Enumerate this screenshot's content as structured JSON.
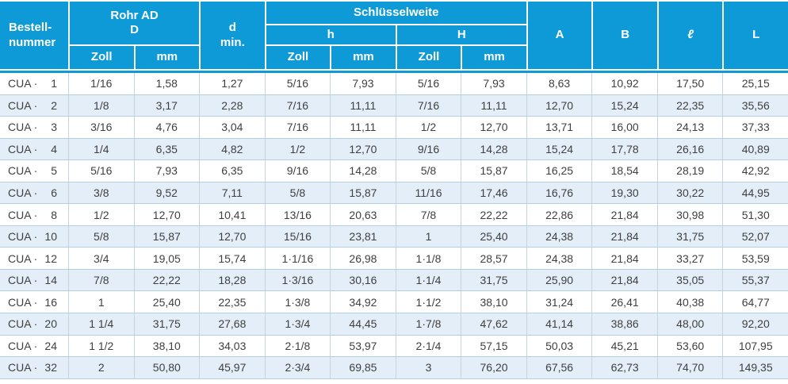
{
  "header": {
    "bestell_line1": "Bestell-",
    "bestell_line2": "nummer",
    "rohr_line1": "Rohr AD",
    "rohr_line2": "D",
    "dmin_line1": "d",
    "dmin_line2": "min.",
    "schluesselweite": "Schlüsselweite",
    "h_lower": "h",
    "h_upper": "H",
    "zoll": "Zoll",
    "mm": "mm",
    "col_a": "A",
    "col_b": "B",
    "col_l_script": "ℓ",
    "col_l": "L"
  },
  "order_prefix": "CUA ·",
  "rows": [
    {
      "nr": "1",
      "values": [
        "1/16",
        "1,58",
        "1,27",
        "5/16",
        "7,93",
        "5/16",
        "7,93",
        "8,63",
        "10,92",
        "17,50",
        "25,15"
      ]
    },
    {
      "nr": "2",
      "values": [
        "1/8",
        "3,17",
        "2,28",
        "7/16",
        "11,11",
        "7/16",
        "11,11",
        "12,70",
        "15,24",
        "22,35",
        "35,56"
      ]
    },
    {
      "nr": "3",
      "values": [
        "3/16",
        "4,76",
        "3,04",
        "7/16",
        "11,11",
        "1/2",
        "12,70",
        "13,71",
        "16,00",
        "24,13",
        "37,33"
      ]
    },
    {
      "nr": "4",
      "values": [
        "1/4",
        "6,35",
        "4,82",
        "1/2",
        "12,70",
        "9/16",
        "14,28",
        "15,24",
        "17,78",
        "26,16",
        "40,89"
      ]
    },
    {
      "nr": "5",
      "values": [
        "5/16",
        "7,93",
        "6,35",
        "9/16",
        "14,28",
        "5/8",
        "15,87",
        "16,25",
        "18,54",
        "28,19",
        "42,92"
      ]
    },
    {
      "nr": "6",
      "values": [
        "3/8",
        "9,52",
        "7,11",
        "5/8",
        "15,87",
        "11/16",
        "17,46",
        "16,76",
        "19,30",
        "30,22",
        "44,95"
      ]
    },
    {
      "nr": "8",
      "values": [
        "1/2",
        "12,70",
        "10,41",
        "13/16",
        "20,63",
        "7/8",
        "22,22",
        "22,86",
        "21,84",
        "30,98",
        "51,30"
      ]
    },
    {
      "nr": "10",
      "values": [
        "5/8",
        "15,87",
        "12,70",
        "15/16",
        "23,81",
        "1",
        "25,40",
        "24,38",
        "21,84",
        "31,75",
        "52,07"
      ]
    },
    {
      "nr": "12",
      "values": [
        "3/4",
        "19,05",
        "15,74",
        "1·1/16",
        "26,98",
        "1·1/8",
        "28,57",
        "24,38",
        "21,84",
        "33,27",
        "53,59"
      ]
    },
    {
      "nr": "14",
      "values": [
        "7/8",
        "22,22",
        "18,28",
        "1·3/16",
        "30,16",
        "1·1/4",
        "31,75",
        "25,90",
        "21,84",
        "35,05",
        "55,37"
      ]
    },
    {
      "nr": "16",
      "values": [
        "1",
        "25,40",
        "22,35",
        "1·3/8",
        "34,92",
        "1·1/2",
        "38,10",
        "31,24",
        "26,41",
        "40,38",
        "64,77"
      ]
    },
    {
      "nr": "20",
      "values": [
        "1 1/4",
        "31,75",
        "27,68",
        "1·3/4",
        "44,45",
        "1·7/8",
        "47,62",
        "41,14",
        "38,86",
        "48,00",
        "92,20"
      ]
    },
    {
      "nr": "24",
      "values": [
        "1 1/2",
        "38,10",
        "34,03",
        "2·1/8",
        "53,97",
        "2·1/4",
        "57,15",
        "50,03",
        "45,21",
        "53,60",
        "107,95"
      ]
    },
    {
      "nr": "32",
      "values": [
        "2",
        "50,80",
        "45,97",
        "2·3/4",
        "69,85",
        "3",
        "76,20",
        "67,56",
        "62,73",
        "74,70",
        "149,35"
      ]
    }
  ],
  "colors": {
    "header_bg": "#0e9ad6",
    "header_text": "#ffffff",
    "stripe_bg": "#e4eef8",
    "row_border": "#b4cfe4",
    "col_border": "#c8d4dc",
    "text": "#3f3f3f",
    "page_bg": "#ffffff"
  }
}
